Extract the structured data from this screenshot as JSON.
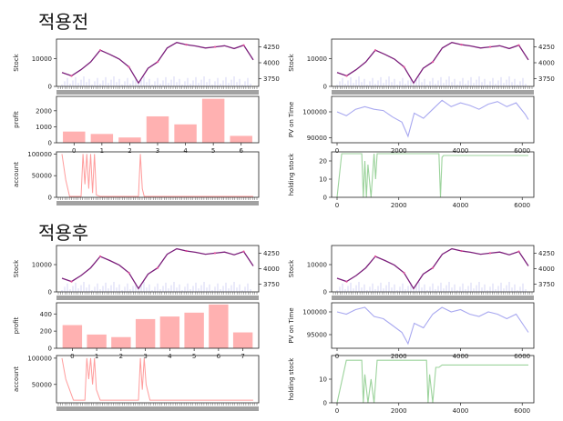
{
  "headings": {
    "before": "적용전",
    "after": "적용후"
  },
  "colors": {
    "stock": "#7b1f7b",
    "stock_marks": "#e0509a",
    "bar": "#ffb1b1",
    "account": "#ff9c9c",
    "pv": "#a8a8f0",
    "holding": "#9cd39c",
    "volume": "#b8b8ee"
  },
  "chart_data": [
    {
      "id": "before-stock-left",
      "type": "line",
      "ylabel": "Stock",
      "yticks": [
        0,
        10000
      ],
      "y2ticks": [
        3750,
        4000,
        4250
      ],
      "ylim": [
        0,
        17000
      ],
      "x": [
        0,
        0.05,
        0.1,
        0.15,
        0.2,
        0.25,
        0.3,
        0.35,
        0.4,
        0.45,
        0.5,
        0.55,
        0.6,
        0.65,
        0.7,
        0.75,
        0.8,
        0.85,
        0.9,
        0.95,
        1
      ],
      "values": [
        5000,
        3800,
        6000,
        8800,
        13000,
        11500,
        9800,
        7000,
        1200,
        6500,
        8800,
        13800,
        15800,
        15000,
        14500,
        13800,
        14200,
        14600,
        13600,
        14800,
        9500
      ]
    },
    {
      "id": "before-stock-right",
      "type": "line",
      "ylabel": "Stock",
      "yticks": [
        0,
        10000
      ],
      "y2ticks": [
        3750,
        4000,
        4250
      ],
      "ylim": [
        0,
        17000
      ],
      "x": [
        0,
        0.05,
        0.1,
        0.15,
        0.2,
        0.25,
        0.3,
        0.35,
        0.4,
        0.45,
        0.5,
        0.55,
        0.6,
        0.65,
        0.7,
        0.75,
        0.8,
        0.85,
        0.9,
        0.95,
        1
      ],
      "values": [
        5000,
        3800,
        6000,
        8800,
        13000,
        11500,
        9800,
        7000,
        1200,
        6500,
        8800,
        13800,
        15800,
        15000,
        14500,
        13800,
        14200,
        14600,
        13600,
        14800,
        9500
      ]
    },
    {
      "id": "before-profit",
      "type": "bar",
      "ylabel": "profit",
      "categories": [
        "0",
        "1",
        "2",
        "3",
        "4",
        "5",
        "6"
      ],
      "values": [
        700,
        550,
        330,
        1650,
        1150,
        2750,
        430
      ],
      "yticks": [
        0,
        1000,
        2000
      ],
      "ylim": [
        0,
        2900
      ]
    },
    {
      "id": "before-pv",
      "type": "line",
      "ylabel": "PV on Time",
      "yticks": [
        90000,
        100000
      ],
      "xticks": [
        0,
        2000,
        4000,
        6000
      ],
      "ylim": [
        88000,
        106000
      ],
      "x": [
        0,
        300,
        600,
        900,
        1200,
        1500,
        1800,
        2100,
        2300,
        2500,
        2800,
        3100,
        3400,
        3700,
        4000,
        4300,
        4600,
        4900,
        5200,
        5500,
        5800,
        6100,
        6200
      ],
      "values": [
        100000,
        98500,
        101000,
        102000,
        101000,
        100500,
        98000,
        96000,
        90500,
        99500,
        97500,
        101000,
        104500,
        102000,
        103500,
        102500,
        101000,
        103000,
        104000,
        102000,
        103500,
        99000,
        97000
      ]
    },
    {
      "id": "before-account",
      "type": "line",
      "ylabel": "account",
      "yticks": [
        0,
        50000,
        100000
      ],
      "ylim": [
        0,
        105000
      ],
      "x": [
        0,
        0.02,
        0.04,
        0.1,
        0.11,
        0.12,
        0.13,
        0.14,
        0.15,
        0.16,
        0.17,
        0.18,
        0.2,
        0.4,
        0.41,
        0.42,
        0.43,
        1
      ],
      "values": [
        100000,
        40000,
        2000,
        2000,
        100000,
        30000,
        100000,
        20000,
        100000,
        10000,
        100000,
        5000,
        2000,
        2000,
        100000,
        20000,
        2000,
        2000
      ]
    },
    {
      "id": "before-holding",
      "type": "line",
      "ylabel": "holding stock",
      "yticks": [
        0,
        10,
        20
      ],
      "xticks": [
        0,
        2000,
        4000,
        6000
      ],
      "ylim": [
        0,
        25
      ],
      "x": [
        0,
        150,
        300,
        800,
        850,
        900,
        950,
        1000,
        1100,
        1200,
        1250,
        1300,
        3300,
        3350,
        3400,
        3450,
        6200
      ],
      "values": [
        0,
        24,
        24,
        24,
        0,
        20,
        0,
        18,
        0,
        24,
        10,
        24,
        24,
        0,
        22,
        23,
        23
      ]
    },
    {
      "id": "after-stock-left",
      "type": "line",
      "ylabel": "Stock",
      "yticks": [
        0,
        10000
      ],
      "y2ticks": [
        3750,
        4000,
        4250
      ],
      "ylim": [
        0,
        17000
      ],
      "x": [
        0,
        0.05,
        0.1,
        0.15,
        0.2,
        0.25,
        0.3,
        0.35,
        0.4,
        0.45,
        0.5,
        0.55,
        0.6,
        0.65,
        0.7,
        0.75,
        0.8,
        0.85,
        0.9,
        0.95,
        1
      ],
      "values": [
        5000,
        3800,
        6000,
        8800,
        13000,
        11500,
        9800,
        7000,
        1200,
        6500,
        8800,
        13800,
        15800,
        15000,
        14500,
        13800,
        14200,
        14600,
        13600,
        14800,
        9500
      ]
    },
    {
      "id": "after-stock-right",
      "type": "line",
      "ylabel": "Stock",
      "yticks": [
        0,
        10000
      ],
      "y2ticks": [
        3750,
        4000,
        4250
      ],
      "ylim": [
        0,
        17000
      ],
      "x": [
        0,
        0.05,
        0.1,
        0.15,
        0.2,
        0.25,
        0.3,
        0.35,
        0.4,
        0.45,
        0.5,
        0.55,
        0.6,
        0.65,
        0.7,
        0.75,
        0.8,
        0.85,
        0.9,
        0.95,
        1
      ],
      "values": [
        5000,
        3800,
        6000,
        8800,
        13000,
        11500,
        9800,
        7000,
        1200,
        6500,
        8800,
        13800,
        15800,
        15000,
        14500,
        13800,
        14200,
        14600,
        13600,
        14800,
        9500
      ]
    },
    {
      "id": "after-profit",
      "type": "bar",
      "ylabel": "profit",
      "categories": [
        "0",
        "1",
        "2",
        "3",
        "4",
        "5",
        "6",
        "7"
      ],
      "values": [
        270,
        160,
        130,
        340,
        370,
        415,
        510,
        185
      ],
      "yticks": [
        0,
        200,
        400
      ],
      "ylim": [
        0,
        530
      ]
    },
    {
      "id": "after-pv",
      "type": "line",
      "ylabel": "PV on Time",
      "yticks": [
        95000,
        100000
      ],
      "xticks": [
        0,
        2000,
        4000,
        6000
      ],
      "ylim": [
        92000,
        102000
      ],
      "x": [
        0,
        300,
        600,
        900,
        1200,
        1500,
        1800,
        2100,
        2300,
        2500,
        2800,
        3100,
        3400,
        3700,
        4000,
        4300,
        4600,
        4900,
        5200,
        5500,
        5800,
        6100,
        6200
      ],
      "values": [
        100000,
        99500,
        100500,
        101000,
        99000,
        98500,
        97000,
        95500,
        93000,
        97500,
        96500,
        99500,
        101000,
        100000,
        100500,
        99500,
        99000,
        100000,
        99500,
        98500,
        99500,
        96500,
        95500
      ]
    },
    {
      "id": "after-account",
      "type": "line",
      "ylabel": "account",
      "yticks": [
        50000,
        100000
      ],
      "ylim": [
        15000,
        105000
      ],
      "x": [
        0,
        0.02,
        0.06,
        0.12,
        0.13,
        0.14,
        0.15,
        0.16,
        0.17,
        0.18,
        0.2,
        0.4,
        0.41,
        0.42,
        0.43,
        0.44,
        0.46,
        1
      ],
      "values": [
        100000,
        60000,
        20000,
        20000,
        100000,
        60000,
        100000,
        50000,
        100000,
        40000,
        20000,
        20000,
        100000,
        40000,
        100000,
        50000,
        20000,
        20000
      ]
    },
    {
      "id": "after-holding",
      "type": "line",
      "ylabel": "holding stock",
      "yticks": [
        0,
        10
      ],
      "xticks": [
        0,
        2000,
        4000,
        6000
      ],
      "ylim": [
        0,
        20
      ],
      "x": [
        0,
        300,
        800,
        850,
        900,
        1000,
        1100,
        1200,
        1300,
        2900,
        2950,
        3000,
        3100,
        3200,
        3300,
        3400,
        6200
      ],
      "values": [
        0,
        18,
        18,
        0,
        12,
        0,
        10,
        0,
        18,
        18,
        0,
        12,
        0,
        15,
        15,
        16,
        16
      ]
    }
  ]
}
